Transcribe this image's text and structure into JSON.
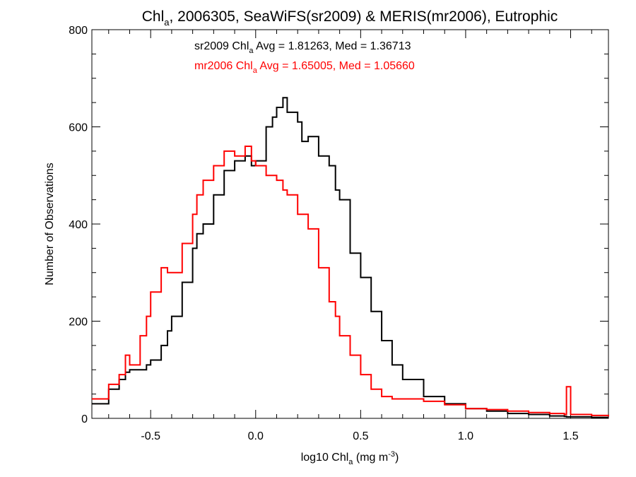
{
  "chart_data": {
    "type": "histogram",
    "title": {
      "main": "Chl",
      "sub": "a",
      "rest": ", 2006305, SeaWiFS(sr2009) & MERIS(mr2006), Eutrophic"
    },
    "xlabel": {
      "main": "log10 Chl",
      "sub": "a",
      "units": " (mg m",
      "sup": "-3",
      "close": ")"
    },
    "ylabel": "Number of Observations",
    "xlim": [
      -0.78,
      1.68
    ],
    "ylim": [
      0,
      800
    ],
    "x_ticks": [
      -0.5,
      0.0,
      0.5,
      1.0,
      1.5
    ],
    "x_tick_labels": [
      "-0.5",
      "0.0",
      "0.5",
      "1.0",
      "1.5"
    ],
    "y_ticks": [
      0,
      200,
      400,
      600,
      800
    ],
    "y_tick_labels": [
      "0",
      "200",
      "400",
      "600",
      "800"
    ],
    "annotations": [
      {
        "part1": "sr2009 Chl",
        "sub": "a",
        "part2": " Avg = 1.81263, Med = 1.36713",
        "color": "#000000"
      },
      {
        "part1": "mr2006 Chl",
        "sub": "a",
        "part2": " Avg = 1.65005, Med = 1.05660",
        "color": "#ff0000"
      }
    ],
    "x": [
      -0.78,
      -0.7,
      -0.65,
      -0.62,
      -0.6,
      -0.55,
      -0.52,
      -0.5,
      -0.45,
      -0.42,
      -0.4,
      -0.35,
      -0.3,
      -0.28,
      -0.25,
      -0.2,
      -0.15,
      -0.1,
      -0.05,
      -0.02,
      0.0,
      0.05,
      0.08,
      0.1,
      0.13,
      0.15,
      0.2,
      0.22,
      0.25,
      0.3,
      0.35,
      0.38,
      0.4,
      0.45,
      0.5,
      0.55,
      0.6,
      0.65,
      0.7,
      0.8,
      0.9,
      1.0,
      1.1,
      1.2,
      1.3,
      1.4,
      1.47,
      1.48,
      1.5,
      1.6,
      1.68
    ],
    "series": [
      {
        "name": "sr2009",
        "color": "#000000",
        "values": [
          30,
          60,
          80,
          95,
          100,
          100,
          110,
          120,
          150,
          180,
          210,
          280,
          350,
          380,
          400,
          460,
          510,
          530,
          540,
          520,
          530,
          600,
          620,
          640,
          660,
          630,
          610,
          570,
          580,
          540,
          520,
          470,
          450,
          340,
          290,
          220,
          160,
          110,
          80,
          45,
          30,
          20,
          15,
          10,
          8,
          5,
          4,
          3,
          3,
          2,
          2
        ]
      },
      {
        "name": "mr2006",
        "color": "#ff0000",
        "values": [
          40,
          70,
          90,
          130,
          110,
          170,
          210,
          260,
          310,
          300,
          300,
          360,
          420,
          460,
          490,
          520,
          550,
          540,
          560,
          530,
          520,
          500,
          500,
          490,
          470,
          460,
          420,
          420,
          390,
          310,
          240,
          210,
          170,
          130,
          90,
          60,
          45,
          40,
          40,
          35,
          28,
          20,
          18,
          15,
          12,
          10,
          8,
          65,
          8,
          6,
          4
        ]
      }
    ]
  }
}
